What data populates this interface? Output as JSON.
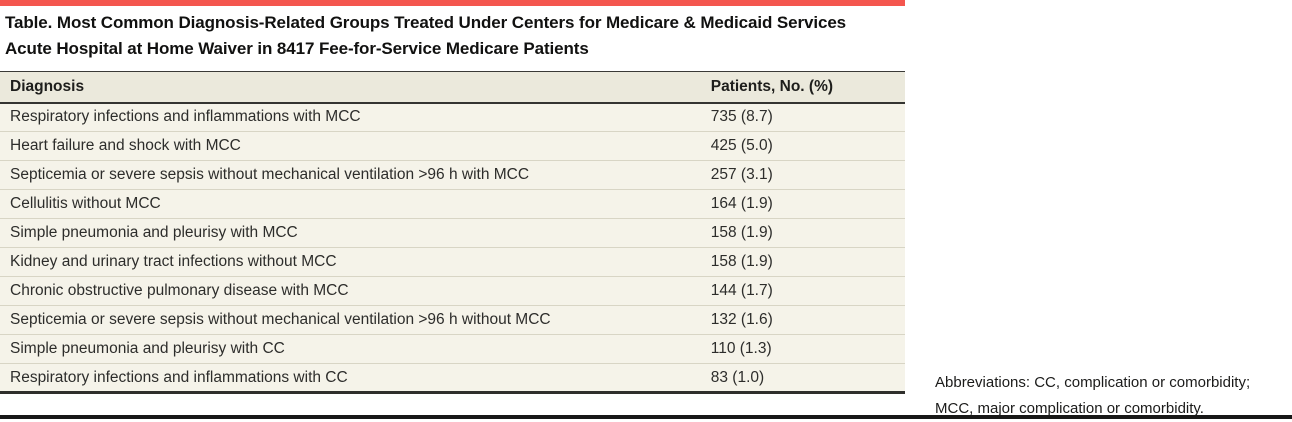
{
  "accent_color": "#f4564e",
  "title": "Table. Most Common Diagnosis-Related Groups Treated Under Centers for Medicare & Medicaid Services Acute Hospital at Home Waiver in 8417 Fee-for-Service Medicare Patients",
  "table": {
    "columns": [
      "Diagnosis",
      "Patients, No. (%)"
    ],
    "rows": [
      [
        "Respiratory infections and inflammations with MCC",
        "735 (8.7)"
      ],
      [
        "Heart failure and shock with MCC",
        "425 (5.0)"
      ],
      [
        "Septicemia or severe sepsis without mechanical ventilation >96 h with MCC",
        "257 (3.1)"
      ],
      [
        "Cellulitis without MCC",
        "164 (1.9)"
      ],
      [
        "Simple pneumonia and pleurisy with MCC",
        "158 (1.9)"
      ],
      [
        "Kidney and urinary tract infections without MCC",
        "158 (1.9)"
      ],
      [
        "Chronic obstructive pulmonary disease with MCC",
        "144 (1.7)"
      ],
      [
        "Septicemia or severe sepsis without mechanical ventilation >96 h without MCC",
        "132 (1.6)"
      ],
      [
        "Simple pneumonia and pleurisy with CC",
        "110 (1.3)"
      ],
      [
        "Respiratory infections and inflammations with CC",
        "83 (1.0)"
      ]
    ]
  },
  "footnote": "Abbreviations: CC, complication or comorbidity; MCC, major complication or comorbidity."
}
